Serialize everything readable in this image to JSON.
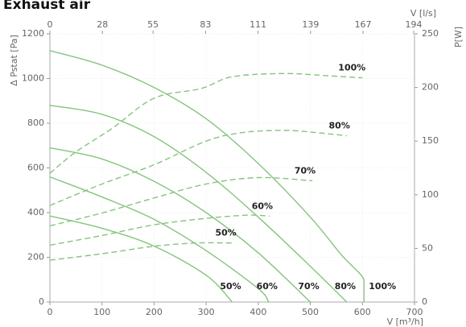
{
  "chart_data": {
    "type": "line",
    "title": "Exhaust air",
    "x_label": "V [m³/h]",
    "x2_label": "V [l/s]",
    "y_label": "Δ Pstat [Pa]",
    "y2_label": "P[W]",
    "xlim": [
      0,
      700
    ],
    "xticks": [
      0,
      100,
      200,
      300,
      400,
      500,
      600,
      700
    ],
    "x2lim": [
      0,
      194.44
    ],
    "x2ticks": [
      0,
      28,
      55,
      83,
      111,
      139,
      167,
      194
    ],
    "ylim": [
      0,
      1200
    ],
    "yticks": [
      0,
      200,
      400,
      600,
      800,
      1000,
      1200
    ],
    "y2lim": [
      0,
      250
    ],
    "y2ticks": [
      0,
      50,
      100,
      150,
      200,
      250
    ],
    "grid": true,
    "series": [
      {
        "name": "100%",
        "color": "#86c47f",
        "style": "solid",
        "x": [
          0,
          100,
          200,
          300,
          400,
          500,
          560,
          603,
          603
        ],
        "values": [
          1125,
          1060,
          960,
          820,
          620,
          380,
          210,
          100,
          0
        ]
      },
      {
        "name": "80%",
        "color": "#86c47f",
        "style": "solid",
        "x": [
          0,
          100,
          200,
          300,
          400,
          500,
          570
        ],
        "values": [
          880,
          840,
          740,
          580,
          380,
          160,
          0
        ]
      },
      {
        "name": "70%",
        "color": "#86c47f",
        "style": "solid",
        "x": [
          0,
          100,
          200,
          300,
          400,
          500
        ],
        "values": [
          690,
          640,
          540,
          400,
          220,
          0
        ]
      },
      {
        "name": "60%",
        "color": "#86c47f",
        "style": "solid",
        "x": [
          0,
          100,
          200,
          300,
          400,
          420
        ],
        "values": [
          560,
          470,
          370,
          230,
          60,
          0
        ]
      },
      {
        "name": "50%",
        "color": "#86c47f",
        "style": "solid",
        "x": [
          0,
          100,
          200,
          300,
          350
        ],
        "values": [
          385,
          330,
          250,
          120,
          0
        ]
      },
      {
        "name": "100%",
        "color": "#86c47f",
        "style": "dashed",
        "axis": "y2",
        "x": [
          0,
          50,
          120,
          200,
          290,
          350,
          450,
          530,
          600
        ],
        "values": [
          120,
          140,
          162,
          190,
          199,
          210,
          213,
          211,
          209
        ]
      },
      {
        "name": "80%",
        "color": "#86c47f",
        "style": "dashed",
        "axis": "y2",
        "x": [
          0,
          100,
          200,
          300,
          370,
          450,
          510,
          570
        ],
        "values": [
          90,
          110,
          128,
          150,
          158,
          160,
          158,
          155
        ]
      },
      {
        "name": "70%",
        "color": "#86c47f",
        "style": "dashed",
        "axis": "y2",
        "x": [
          0,
          100,
          200,
          300,
          400,
          504
        ],
        "values": [
          71,
          83,
          97,
          110,
          116,
          113
        ]
      },
      {
        "name": "60%",
        "color": "#86c47f",
        "style": "dashed",
        "axis": "y2",
        "x": [
          0,
          100,
          200,
          300,
          380,
          422
        ],
        "values": [
          53,
          62,
          72,
          78,
          81,
          80
        ]
      },
      {
        "name": "50%",
        "color": "#86c47f",
        "style": "dashed",
        "axis": "y2",
        "x": [
          0,
          100,
          200,
          280,
          352
        ],
        "values": [
          39,
          45,
          52,
          55,
          55
        ]
      }
    ]
  }
}
